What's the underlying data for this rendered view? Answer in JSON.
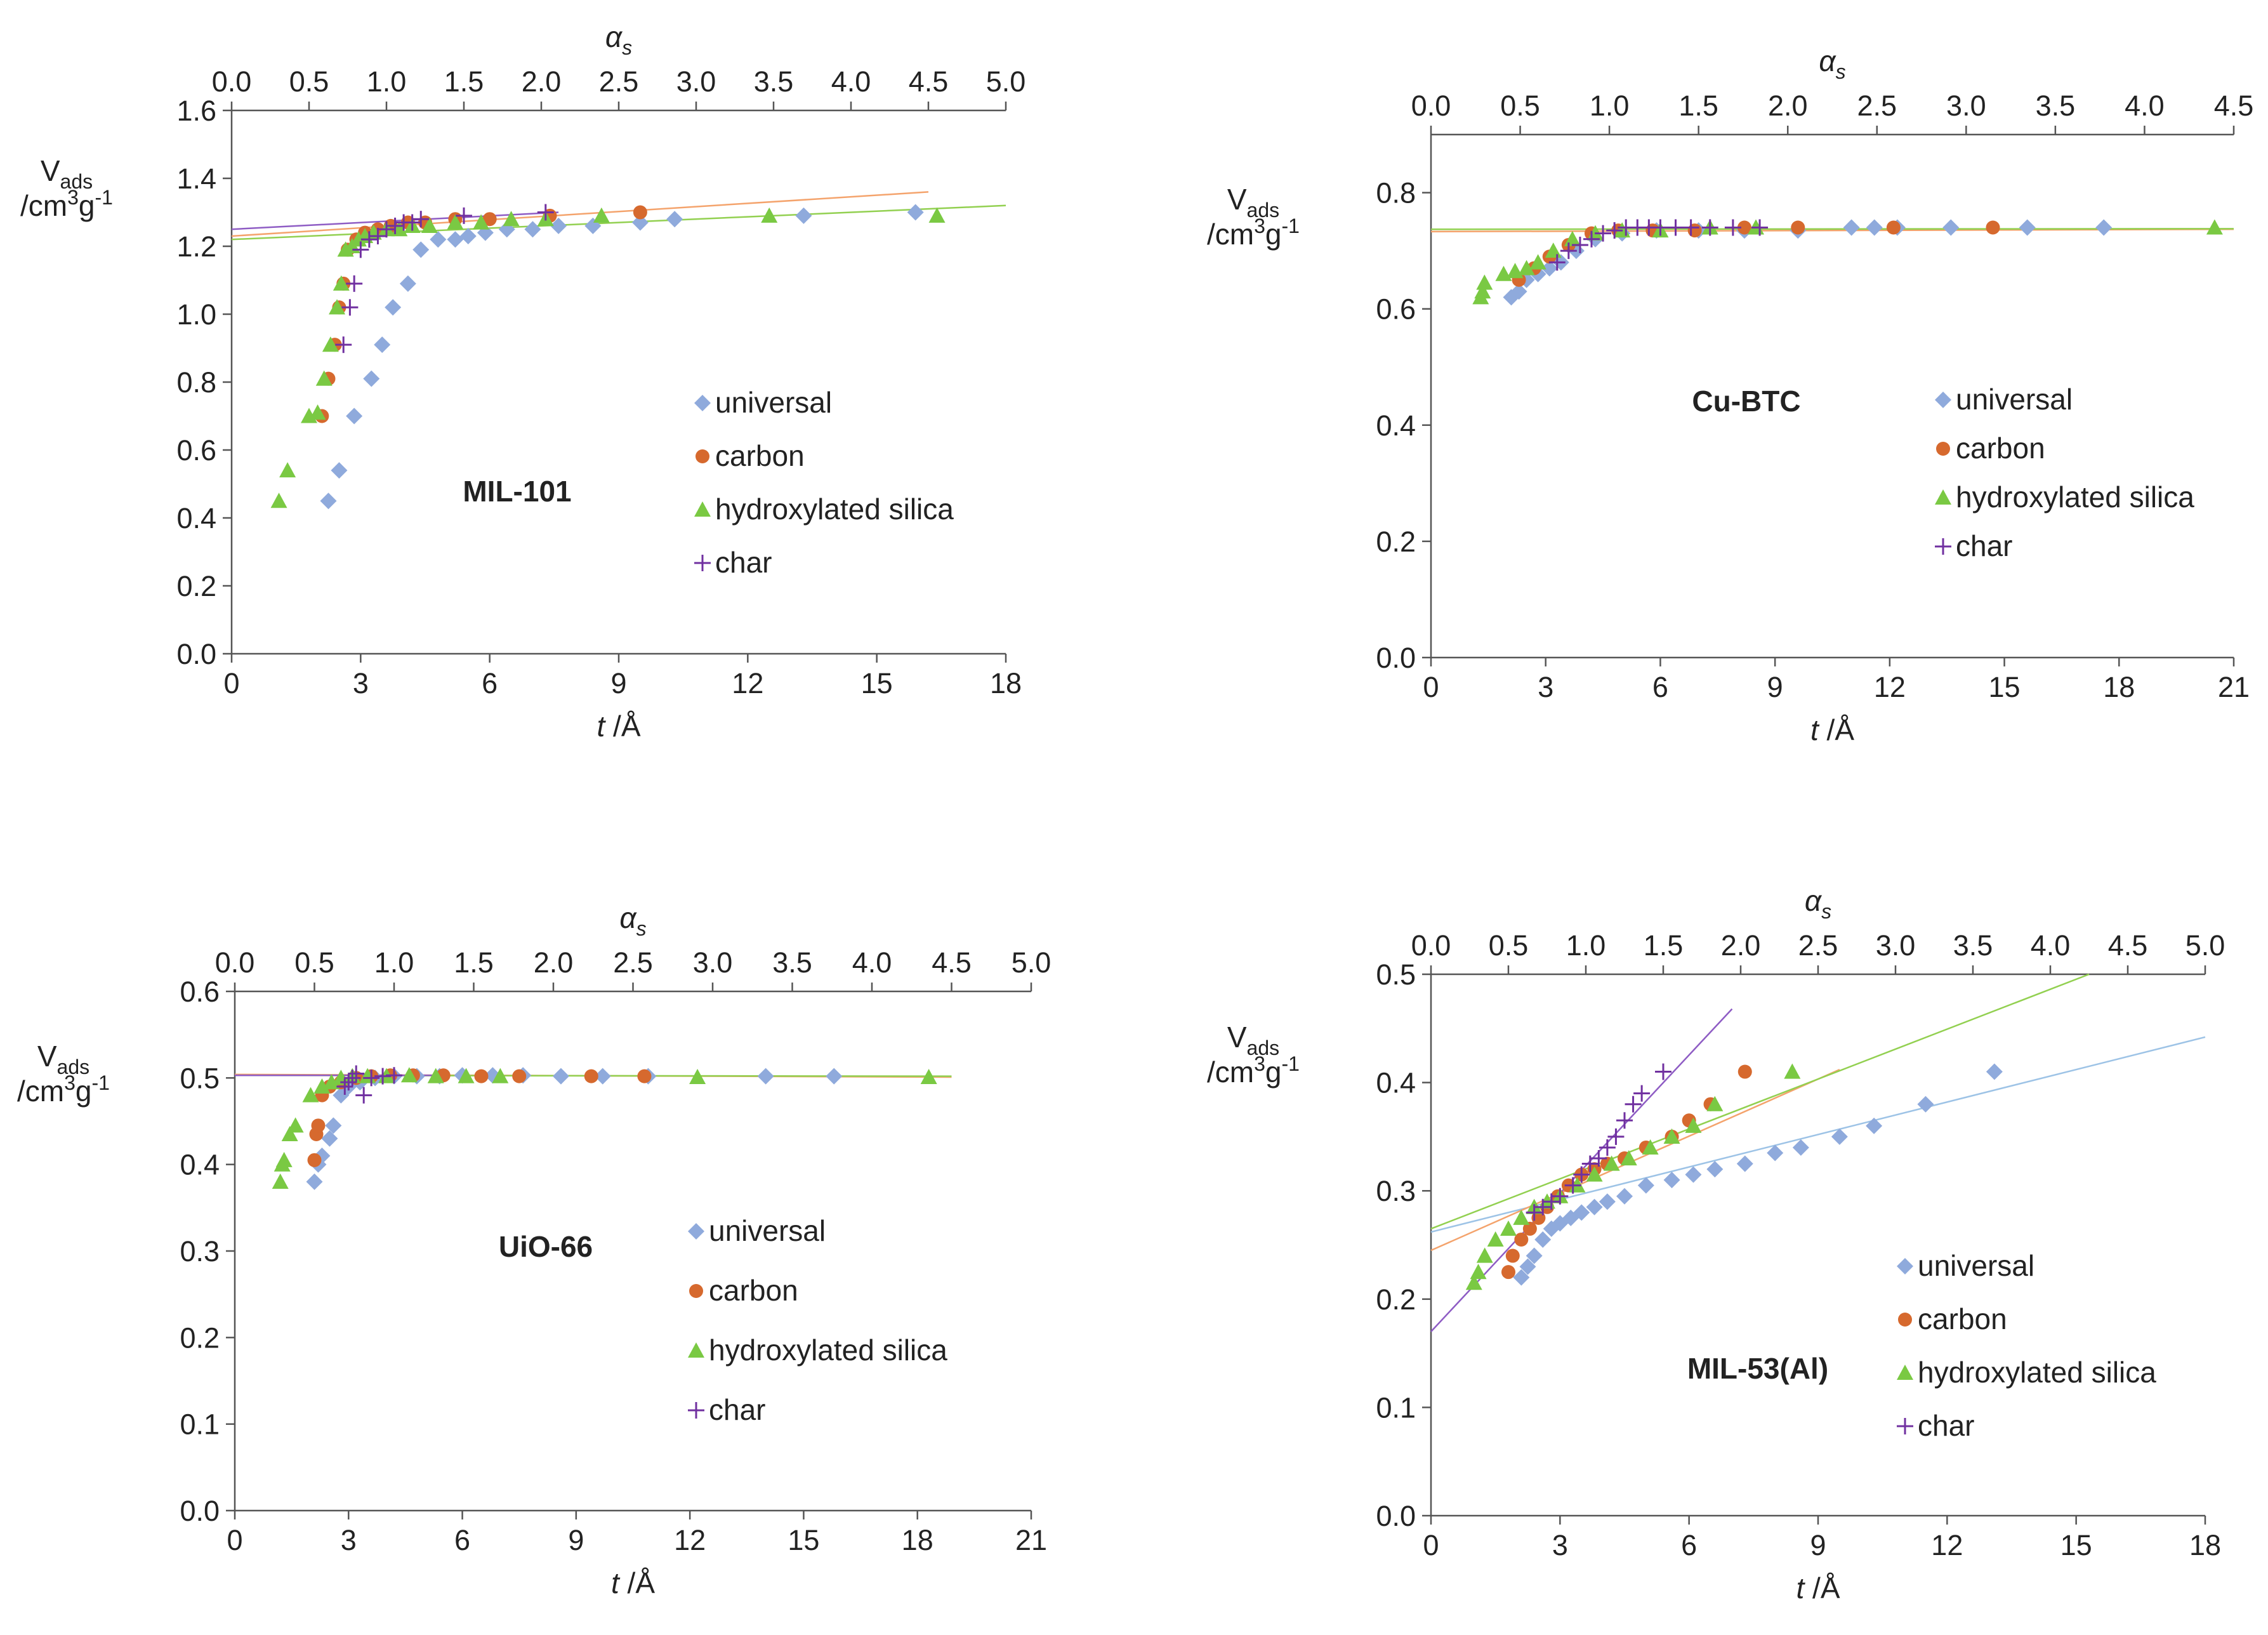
{
  "figure": {
    "background": "#ffffff"
  },
  "colors": {
    "universal": "#8faadc",
    "universal_line": "#9dc3e6",
    "carbon": "#d6692e",
    "carbon_line": "#f4a36c",
    "silica": "#7ac943",
    "silica_line": "#92d050",
    "char": "#7030a0",
    "char_line": "#8e5cc4",
    "axis": "#555555"
  },
  "chart_data": [
    {
      "id": "mil101",
      "type": "scatter",
      "title": "MIL-101",
      "xlabel_italic": "t",
      "xlabel_unit": "/Å",
      "top_axis_label": "α",
      "top_axis_sub": "s",
      "ylabel_main": "V",
      "ylabel_sub": "ads",
      "ylabel_unit_a": "/cm",
      "ylabel_unit_sup1": "3",
      "ylabel_unit_b": "g",
      "ylabel_unit_sup2": "-1",
      "xlim": [
        0,
        18
      ],
      "ylim": [
        0,
        1.6
      ],
      "x2lim": [
        0,
        5
      ],
      "xticks": [
        "0",
        "3",
        "6",
        "9",
        "12",
        "15",
        "18"
      ],
      "yticks": [
        "0.0",
        "0.2",
        "0.4",
        "0.6",
        "0.8",
        "1.0",
        "1.2",
        "1.4",
        "1.6"
      ],
      "x2ticks": [
        "0.0",
        "0.5",
        "1.0",
        "1.5",
        "2.0",
        "2.5",
        "3.0",
        "3.5",
        "4.0",
        "4.5",
        "5.0"
      ],
      "legend": [
        "universal",
        "carbon",
        "hydroxylated silica",
        "char"
      ],
      "series": [
        {
          "name": "universal",
          "marker": "diamond",
          "x": [
            2.25,
            2.5,
            2.85,
            3.25,
            3.5,
            3.75,
            4.1,
            4.4,
            4.8,
            5.2,
            5.5,
            5.9,
            6.4,
            7.0,
            7.6,
            8.4,
            9.5,
            10.3,
            13.3,
            15.9
          ],
          "y": [
            0.45,
            0.54,
            0.7,
            0.81,
            0.91,
            1.02,
            1.09,
            1.19,
            1.22,
            1.22,
            1.23,
            1.24,
            1.25,
            1.25,
            1.26,
            1.26,
            1.27,
            1.28,
            1.29,
            1.3
          ]
        },
        {
          "name": "carbon",
          "marker": "circle",
          "x": [
            2.1,
            2.25,
            2.4,
            2.5,
            2.6,
            2.7,
            2.9,
            3.1,
            3.4,
            3.7,
            4.1,
            4.5,
            5.2,
            6.0,
            7.4,
            9.5
          ],
          "y": [
            0.7,
            0.81,
            0.91,
            1.02,
            1.09,
            1.19,
            1.22,
            1.24,
            1.25,
            1.26,
            1.27,
            1.27,
            1.28,
            1.28,
            1.29,
            1.3
          ],
          "fit": {
            "x": [
              0,
              16.2
            ],
            "y": [
              1.23,
              1.36
            ]
          }
        },
        {
          "name": "hydroxylated silica",
          "marker": "triangle",
          "x": [
            1.1,
            1.3,
            1.8,
            2.0,
            2.15,
            2.3,
            2.45,
            2.55,
            2.65,
            2.8,
            2.95,
            3.1,
            3.3,
            3.6,
            3.9,
            4.2,
            4.6,
            5.2,
            5.8,
            6.5,
            7.3,
            8.6,
            12.5,
            16.4
          ],
          "y": [
            0.45,
            0.54,
            0.7,
            0.71,
            0.81,
            0.91,
            1.02,
            1.09,
            1.19,
            1.2,
            1.22,
            1.23,
            1.24,
            1.25,
            1.25,
            1.26,
            1.26,
            1.27,
            1.27,
            1.28,
            1.28,
            1.29,
            1.29,
            1.29
          ],
          "fit": {
            "x": [
              0,
              18
            ],
            "y": [
              1.22,
              1.32
            ]
          }
        },
        {
          "name": "char",
          "marker": "plus",
          "x": [
            2.6,
            2.75,
            2.85,
            3.0,
            3.2,
            3.4,
            3.6,
            3.8,
            4.0,
            4.2,
            4.4,
            5.4,
            7.3
          ],
          "y": [
            0.91,
            1.02,
            1.09,
            1.19,
            1.22,
            1.23,
            1.25,
            1.26,
            1.27,
            1.27,
            1.28,
            1.29,
            1.3
          ],
          "fit": {
            "x": [
              0,
              7.6
            ],
            "y": [
              1.25,
              1.3
            ]
          }
        }
      ]
    },
    {
      "id": "cubtc",
      "type": "scatter",
      "title": "Cu-BTC",
      "xlabel_italic": "t",
      "xlabel_unit": "/Å",
      "top_axis_label": "α",
      "top_axis_sub": "s",
      "ylabel_main": "V",
      "ylabel_sub": "ads",
      "ylabel_unit_a": "/cm",
      "ylabel_unit_sup1": "3",
      "ylabel_unit_b": "g",
      "ylabel_unit_sup2": "-1",
      "xlim": [
        0,
        21
      ],
      "ylim": [
        0,
        0.9
      ],
      "x2lim": [
        0,
        4.5
      ],
      "xticks": [
        "0",
        "3",
        "6",
        "9",
        "12",
        "15",
        "18",
        "21"
      ],
      "yticks": [
        "0.0",
        "0.2",
        "0.4",
        "0.6",
        "0.8"
      ],
      "ytick_values": [
        0,
        0.2,
        0.4,
        0.6,
        0.8
      ],
      "x2ticks": [
        "0.0",
        "0.5",
        "1.0",
        "1.5",
        "2.0",
        "2.5",
        "3.0",
        "3.5",
        "4.0",
        "4.5"
      ],
      "legend": [
        "universal",
        "carbon",
        "hydroxylated silica",
        "char"
      ],
      "series": [
        {
          "name": "universal",
          "marker": "diamond",
          "x": [
            2.1,
            2.3,
            2.5,
            2.8,
            3.1,
            3.4,
            3.8,
            4.3,
            5.0,
            5.9,
            7.0,
            8.2,
            9.6,
            11.0,
            11.6,
            12.2,
            13.6,
            15.6,
            17.6
          ],
          "y": [
            0.62,
            0.63,
            0.65,
            0.66,
            0.67,
            0.68,
            0.7,
            0.72,
            0.73,
            0.735,
            0.735,
            0.735,
            0.735,
            0.74,
            0.74,
            0.74,
            0.74,
            0.74,
            0.74
          ]
        },
        {
          "name": "carbon",
          "marker": "circle",
          "x": [
            2.3,
            2.7,
            3.1,
            3.6,
            4.2,
            4.9,
            5.8,
            6.9,
            8.2,
            9.6,
            12.1,
            14.7
          ],
          "y": [
            0.65,
            0.67,
            0.69,
            0.71,
            0.73,
            0.735,
            0.735,
            0.735,
            0.74,
            0.74,
            0.74,
            0.74
          ],
          "fit": {
            "x": [
              0,
              21
            ],
            "y": [
              0.733,
              0.737
            ]
          }
        },
        {
          "name": "hydroxylated silica",
          "marker": "triangle",
          "x": [
            1.3,
            1.35,
            1.4,
            1.9,
            2.2,
            2.5,
            2.8,
            3.2,
            3.7,
            4.3,
            5.0,
            6.0,
            7.3,
            8.5,
            20.5
          ],
          "y": [
            0.62,
            0.63,
            0.645,
            0.66,
            0.665,
            0.67,
            0.68,
            0.7,
            0.72,
            0.73,
            0.735,
            0.735,
            0.74,
            0.74,
            0.74
          ],
          "fit": {
            "x": [
              0,
              21
            ],
            "y": [
              0.737,
              0.738
            ]
          }
        },
        {
          "name": "char",
          "marker": "plus",
          "x": [
            3.3,
            3.6,
            3.9,
            4.2,
            4.5,
            4.8,
            5.1,
            5.4,
            5.7,
            6.0,
            6.4,
            6.8,
            7.3,
            7.9,
            8.6
          ],
          "y": [
            0.68,
            0.7,
            0.71,
            0.72,
            0.73,
            0.735,
            0.74,
            0.74,
            0.74,
            0.74,
            0.74,
            0.74,
            0.74,
            0.74,
            0.74
          ]
        }
      ]
    },
    {
      "id": "uio66",
      "type": "scatter",
      "title": "UiO-66",
      "xlabel_italic": "t",
      "xlabel_unit": "/Å",
      "top_axis_label": "α",
      "top_axis_sub": "s",
      "ylabel_main": "V",
      "ylabel_sub": "ads",
      "ylabel_unit_a": "/cm",
      "ylabel_unit_sup1": "3",
      "ylabel_unit_b": "g",
      "ylabel_unit_sup2": "-1",
      "xlim": [
        0,
        21
      ],
      "ylim": [
        0,
        0.6
      ],
      "x2lim": [
        0,
        5
      ],
      "xticks": [
        "0",
        "3",
        "6",
        "9",
        "12",
        "15",
        "18",
        "21"
      ],
      "yticks": [
        "0.0",
        "0.1",
        "0.2",
        "0.3",
        "0.4",
        "0.5",
        "0.6"
      ],
      "x2ticks": [
        "0.0",
        "0.5",
        "1.0",
        "1.5",
        "2.0",
        "2.5",
        "3.0",
        "3.5",
        "4.0",
        "4.5",
        "5.0"
      ],
      "legend": [
        "universal",
        "carbon",
        "hydroxylated silica",
        "char"
      ],
      "series": [
        {
          "name": "universal",
          "marker": "diamond",
          "x": [
            2.1,
            2.2,
            2.3,
            2.5,
            2.6,
            2.8,
            3.0,
            3.3,
            3.7,
            4.2,
            4.8,
            5.4,
            6.0,
            6.8,
            7.6,
            8.6,
            9.7,
            10.9,
            14.0,
            15.8
          ],
          "y": [
            0.38,
            0.4,
            0.41,
            0.43,
            0.445,
            0.48,
            0.49,
            0.495,
            0.5,
            0.502,
            0.502,
            0.502,
            0.503,
            0.503,
            0.503,
            0.502,
            0.502,
            0.502,
            0.502,
            0.502
          ]
        },
        {
          "name": "carbon",
          "marker": "circle",
          "x": [
            2.1,
            2.15,
            2.2,
            2.3,
            2.5,
            2.8,
            3.2,
            3.6,
            4.1,
            4.7,
            5.5,
            6.5,
            7.5,
            9.4,
            10.8
          ],
          "y": [
            0.405,
            0.435,
            0.445,
            0.48,
            0.49,
            0.495,
            0.5,
            0.502,
            0.503,
            0.503,
            0.503,
            0.502,
            0.502,
            0.502,
            0.502
          ],
          "fit": {
            "x": [
              0,
              18.9
            ],
            "y": [
              0.504,
              0.501
            ]
          }
        },
        {
          "name": "hydroxylated silica",
          "marker": "triangle",
          "x": [
            1.2,
            1.25,
            1.3,
            1.45,
            1.6,
            2.0,
            2.3,
            2.55,
            2.8,
            3.1,
            3.5,
            4.0,
            4.6,
            5.3,
            6.1,
            7.0,
            12.2,
            18.3
          ],
          "y": [
            0.38,
            0.4,
            0.405,
            0.435,
            0.445,
            0.48,
            0.49,
            0.495,
            0.5,
            0.502,
            0.502,
            0.502,
            0.503,
            0.502,
            0.502,
            0.502,
            0.501,
            0.501
          ],
          "fit": {
            "x": [
              0,
              18.9
            ],
            "y": [
              0.503,
              0.502
            ]
          }
        },
        {
          "name": "char",
          "marker": "plus",
          "x": [
            2.9,
            3.0,
            3.1,
            3.2,
            3.4,
            3.6,
            3.9,
            4.2
          ],
          "y": [
            0.49,
            0.495,
            0.5,
            0.505,
            0.48,
            0.5,
            0.502,
            0.503
          ],
          "fit": {
            "x": [
              0,
              5.5
            ],
            "y": [
              0.503,
              0.503
            ]
          }
        }
      ]
    },
    {
      "id": "mil53",
      "type": "scatter",
      "title": "MIL-53(Al)",
      "xlabel_italic": "t",
      "xlabel_unit": "/Å",
      "top_axis_label": "α",
      "top_axis_sub": "s",
      "ylabel_main": "V",
      "ylabel_sub": "ads",
      "ylabel_unit_a": "/cm",
      "ylabel_unit_sup1": "3",
      "ylabel_unit_b": "g",
      "ylabel_unit_sup2": "-1",
      "xlim": [
        0,
        18
      ],
      "ylim": [
        0,
        0.5
      ],
      "x2lim": [
        0,
        5
      ],
      "xticks": [
        "0",
        "3",
        "6",
        "9",
        "12",
        "15",
        "18"
      ],
      "yticks": [
        "0.0",
        "0.1",
        "0.2",
        "0.3",
        "0.4",
        "0.5"
      ],
      "x2ticks": [
        "0.0",
        "0.5",
        "1.0",
        "1.5",
        "2.0",
        "2.5",
        "3.0",
        "3.5",
        "4.0",
        "4.5",
        "5.0"
      ],
      "legend": [
        "universal",
        "carbon",
        "hydroxylated silica",
        "char"
      ],
      "series": [
        {
          "name": "universal",
          "marker": "diamond",
          "x": [
            2.1,
            2.25,
            2.4,
            2.6,
            2.8,
            3.0,
            3.25,
            3.5,
            3.8,
            4.1,
            4.5,
            5.0,
            5.6,
            6.1,
            6.6,
            7.3,
            8.0,
            8.6,
            9.5,
            10.3,
            11.5,
            13.1
          ],
          "y": [
            0.22,
            0.23,
            0.24,
            0.255,
            0.265,
            0.27,
            0.275,
            0.28,
            0.285,
            0.29,
            0.295,
            0.305,
            0.31,
            0.315,
            0.32,
            0.325,
            0.335,
            0.34,
            0.35,
            0.36,
            0.38,
            0.41
          ],
          "fit": {
            "x": [
              0,
              18
            ],
            "y": [
              0.262,
              0.442
            ]
          }
        },
        {
          "name": "carbon",
          "marker": "circle",
          "x": [
            1.8,
            1.9,
            2.1,
            2.3,
            2.5,
            2.7,
            2.95,
            3.2,
            3.5,
            3.8,
            4.1,
            4.5,
            5.0,
            5.6,
            6.0,
            6.5,
            7.3
          ],
          "y": [
            0.225,
            0.24,
            0.255,
            0.265,
            0.275,
            0.285,
            0.295,
            0.305,
            0.315,
            0.32,
            0.325,
            0.33,
            0.34,
            0.35,
            0.365,
            0.38,
            0.41
          ],
          "fit": {
            "x": [
              0,
              9.5
            ],
            "y": [
              0.245,
              0.412
            ]
          }
        },
        {
          "name": "hydroxylated silica",
          "marker": "triangle",
          "x": [
            1.0,
            1.1,
            1.25,
            1.5,
            1.8,
            2.1,
            2.4,
            2.7,
            3.0,
            3.4,
            3.8,
            4.2,
            4.6,
            5.1,
            5.6,
            6.1,
            6.6,
            8.4
          ],
          "y": [
            0.215,
            0.225,
            0.24,
            0.255,
            0.265,
            0.275,
            0.285,
            0.29,
            0.295,
            0.305,
            0.315,
            0.325,
            0.33,
            0.34,
            0.35,
            0.36,
            0.38,
            0.41
          ],
          "fit": {
            "x": [
              0,
              15.3
            ],
            "y": [
              0.265,
              0.5
            ]
          }
        },
        {
          "name": "char",
          "marker": "plus",
          "x": [
            2.4,
            2.6,
            2.8,
            3.0,
            3.3,
            3.5,
            3.7,
            3.9,
            4.1,
            4.3,
            4.5,
            4.7,
            4.9,
            5.4
          ],
          "y": [
            0.28,
            0.285,
            0.29,
            0.295,
            0.305,
            0.315,
            0.325,
            0.33,
            0.34,
            0.35,
            0.365,
            0.38,
            0.39,
            0.41
          ],
          "fit": {
            "x": [
              0,
              7.0
            ],
            "y": [
              0.17,
              0.468
            ]
          }
        }
      ]
    }
  ]
}
